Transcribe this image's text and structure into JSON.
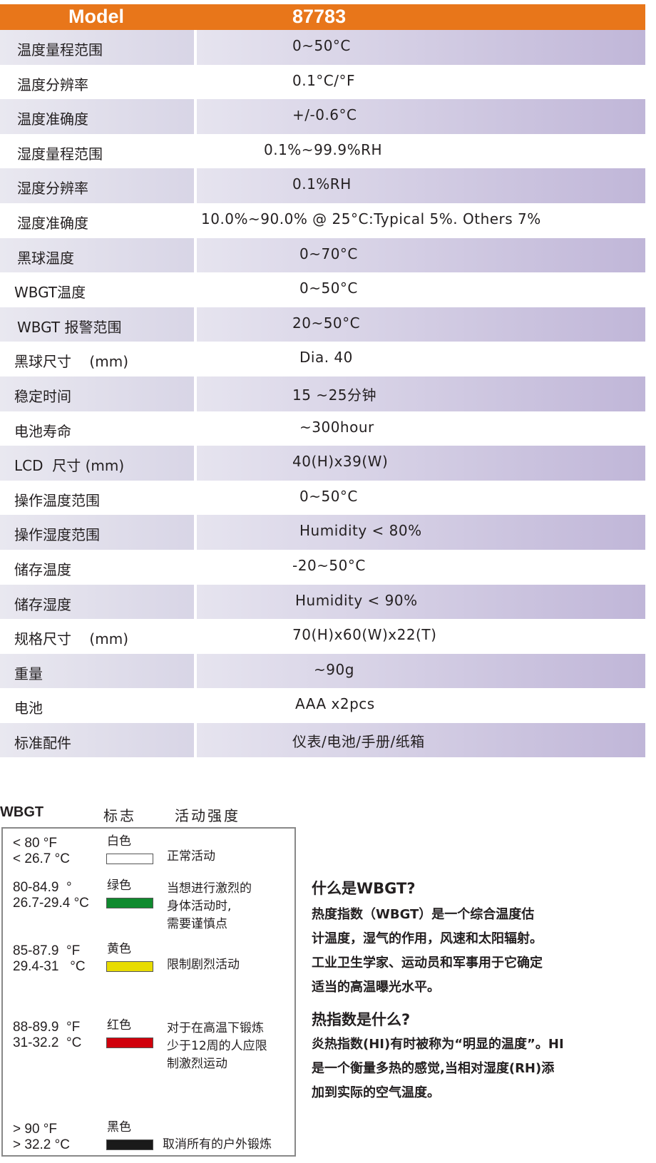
{
  "header": {
    "model_label": "Model",
    "model_value": "87783",
    "color": "#e8761a"
  },
  "specs": [
    {
      "label": "温度量程范围",
      "value": "0~50°C"
    },
    {
      "label": "温度分辨率",
      "value": "0.1°C/°F"
    },
    {
      "label": "温度准确度",
      "value": "+/-0.6°C"
    },
    {
      "label": "湿度量程范围",
      "value": "0.1%~99.9%RH"
    },
    {
      "label": "湿度分辨率",
      "value": "0.1%RH"
    },
    {
      "label": "湿度准确度",
      "value": "10.0%~90.0% @ 25°C:Typical 5%. Others 7%"
    },
    {
      "label": "黑球温度",
      "value": "0~70°C"
    },
    {
      "label": "WBGT温度",
      "value": "0~50°C"
    },
    {
      "label": "WBGT 报警范围",
      "value": "20~50°C"
    },
    {
      "label": "黑球尺寸    (mm)",
      "value": "Dia. 40"
    },
    {
      "label": "稳定时间",
      "value": "15 ~25分钟"
    },
    {
      "label": "电池寿命",
      "value": "~300hour"
    },
    {
      "label": "LCD  尺寸 (mm)",
      "value": "40(H)x39(W)"
    },
    {
      "label": "操作温度范围",
      "value": "0~50°C"
    },
    {
      "label": "操作湿度范围",
      "value": "Humidity < 80%"
    },
    {
      "label": "储存温度",
      "value": "-20~50°C"
    },
    {
      "label": "储存湿度",
      "value": "Humidity < 90%"
    },
    {
      "label": "规格尺寸    (mm)",
      "value": "70(H)x60(W)x22(T)"
    },
    {
      "label": "重量",
      "value": "~90g"
    },
    {
      "label": "电池",
      "value": "AAA x2pcs"
    },
    {
      "label": "标准配件",
      "value": "仪表/电池/手册/纸箱"
    }
  ],
  "legend": {
    "headers": [
      "WBGT",
      "标志",
      "活动强度"
    ],
    "items": [
      {
        "f": "< 80 °F",
        "c": "< 26.7 °C",
        "flag": "白色",
        "color": "#ffffff",
        "activity": "正常活动"
      },
      {
        "f": "80-84.9  °",
        "c": "26.7-29.4 °C",
        "flag": "绿色",
        "color": "#0f8a2e",
        "activity": "当想进行激烈的\n身体活动时,\n需要谨慎点"
      },
      {
        "f": "85-87.9  °F",
        "c": "29.4-31   °C",
        "flag": "黄色",
        "color": "#e8dc00",
        "activity": "限制剧烈活动"
      },
      {
        "f": "88-89.9  °F",
        "c": "31-32.2  °C",
        "flag": "红色",
        "color": "#d0000c",
        "activity": "对于在高温下锻炼\n少于12周的人应限\n制激烈运动"
      },
      {
        "f": "> 90 °F",
        "c": "> 32.2 °C",
        "flag": "黑色",
        "color": "#1a1a1a",
        "activity": "取消所有的户外锻炼"
      }
    ]
  },
  "info": {
    "wbgt_title": "什么是WBGT?",
    "wbgt_text": [
      "热度指数（WBGT）是一个综合温度估",
      "计温度，湿气的作用，风速和太阳辐射。",
      "工业卫生学家、运动员和军事用于它确定",
      "适当的高温曝光水平。"
    ],
    "hi_title": "热指数是什么?",
    "hi_text": [
      "炎热指数(HI)有时被称为“明显的温度”。HI",
      "是一个衡量多热的感觉,当相对湿度(RH)添",
      "加到实际的空气温度。"
    ]
  }
}
